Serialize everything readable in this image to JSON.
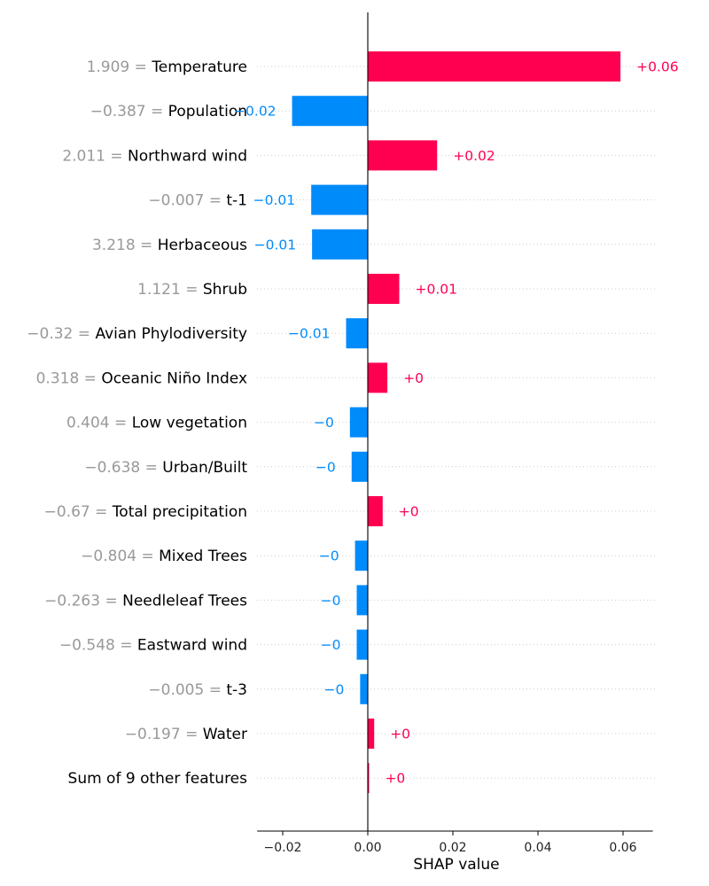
{
  "chart_data": {
    "type": "bar",
    "orientation": "horizontal",
    "xlabel": "SHAP value",
    "xlim": [
      -0.026,
      0.067
    ],
    "xticks": [
      -0.02,
      0.0,
      0.02,
      0.04,
      0.06
    ],
    "xtick_labels": [
      "−0.02",
      "0.00",
      "0.02",
      "0.04",
      "0.06"
    ],
    "grid": "dotted horizontal row guides",
    "colors": {
      "positive": "#ff0051",
      "negative": "#008bfb",
      "value_text": "#999999"
    },
    "rows": [
      {
        "feature": "Temperature",
        "value_text": "1.909",
        "shap": 0.0594,
        "bar_label": "+0.06"
      },
      {
        "feature": "Population",
        "value_text": "−0.387",
        "shap": -0.0178,
        "bar_label": "−0.02"
      },
      {
        "feature": "Northward wind",
        "value_text": "2.011",
        "shap": 0.0163,
        "bar_label": "+0.02"
      },
      {
        "feature": "t-1",
        "value_text": "−0.007",
        "shap": -0.0133,
        "bar_label": "−0.01"
      },
      {
        "feature": "Herbaceous",
        "value_text": "3.218",
        "shap": -0.0131,
        "bar_label": "−0.01"
      },
      {
        "feature": "Shrub",
        "value_text": "1.121",
        "shap": 0.0074,
        "bar_label": "+0.01"
      },
      {
        "feature": "Avian Phylodiversity",
        "value_text": "−0.32",
        "shap": -0.0051,
        "bar_label": "−0.01"
      },
      {
        "feature": "Oceanic Niño Index",
        "value_text": "0.318",
        "shap": 0.0046,
        "bar_label": "+0"
      },
      {
        "feature": "Low vegetation",
        "value_text": "0.404",
        "shap": -0.0042,
        "bar_label": "−0"
      },
      {
        "feature": "Urban/Built",
        "value_text": "−0.638",
        "shap": -0.0038,
        "bar_label": "−0"
      },
      {
        "feature": "Total precipitation",
        "value_text": "−0.67",
        "shap": 0.0035,
        "bar_label": "+0"
      },
      {
        "feature": "Mixed Trees",
        "value_text": "−0.804",
        "shap": -0.003,
        "bar_label": "−0"
      },
      {
        "feature": "Needleleaf Trees",
        "value_text": "−0.263",
        "shap": -0.0026,
        "bar_label": "−0"
      },
      {
        "feature": "Eastward wind",
        "value_text": "−0.548",
        "shap": -0.0026,
        "bar_label": "−0"
      },
      {
        "feature": "t-3",
        "value_text": "−0.005",
        "shap": -0.0018,
        "bar_label": "−0"
      },
      {
        "feature": "Water",
        "value_text": "−0.197",
        "shap": 0.0015,
        "bar_label": "+0"
      },
      {
        "feature": "Sum of 9 other features",
        "value_text": "",
        "shap": 0.0003,
        "bar_label": "+0"
      }
    ]
  }
}
